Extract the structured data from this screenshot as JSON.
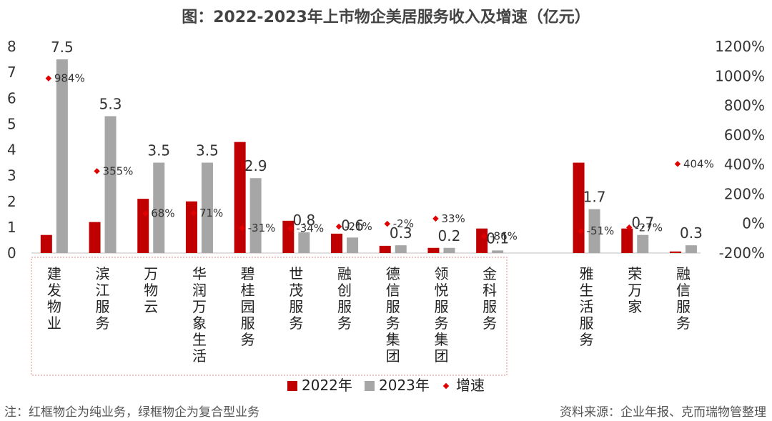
{
  "title": "图：2022-2023年上市物企美居服务收入及增速（亿元）",
  "footer": {
    "note": "注：红框物企为纯业务，绿框物企为复合型业务",
    "source": "资料来源：企业年报、克而瑞物管整理"
  },
  "colors": {
    "series_2022": "#c00000",
    "series_2023": "#a6a6a6",
    "growth": "#e00000",
    "pure_box": "#e6a0a0"
  },
  "chart_data": {
    "type": "bar",
    "title": "图：2022-2023年上市物企美居服务收入及增速（亿元）",
    "categories": [
      "建发物业",
      "滨江服务",
      "万物云",
      "华润万象生活",
      "碧桂园服务",
      "世茂服务",
      "融创服务",
      "德信服务集团",
      "领悦服务集团",
      "金科服务",
      "",
      "雅生活服务",
      "荣万家",
      "融信服务"
    ],
    "series": [
      {
        "name": "2022年",
        "axis": "left",
        "values": [
          0.7,
          1.2,
          2.1,
          2.0,
          4.3,
          1.25,
          0.75,
          0.28,
          0.2,
          0.95,
          null,
          3.5,
          0.95,
          0.06
        ]
      },
      {
        "name": "2023年",
        "axis": "left",
        "values": [
          7.5,
          5.3,
          3.5,
          3.5,
          2.9,
          0.8,
          0.6,
          0.3,
          0.2,
          0.1,
          null,
          1.7,
          0.7,
          0.3
        ],
        "labels": [
          "7.5",
          "5.3",
          "3.5",
          "3.5",
          "2.9",
          "0.8",
          "0.6",
          "0.3",
          "0.2",
          "0.1",
          "",
          "1.7",
          "0.7",
          "0.3"
        ]
      },
      {
        "name": "增速",
        "axis": "right",
        "type": "scatter",
        "values": [
          984,
          355,
          68,
          71,
          -31,
          -34,
          -21,
          -2,
          33,
          -86,
          null,
          -51,
          -27,
          404
        ],
        "labels": [
          "984%",
          "355%",
          "68%",
          "71%",
          "-31%",
          "-34%",
          "-21%",
          "-2%",
          "33%",
          "-86%",
          "",
          "-51%",
          "-27%",
          "404%"
        ]
      }
    ],
    "y_left": {
      "min": 0,
      "max": 8,
      "ticks": [
        "0",
        "1",
        "2",
        "3",
        "4",
        "5",
        "6",
        "7",
        "8"
      ]
    },
    "y_right": {
      "min": -200,
      "max": 1200,
      "ticks": [
        "-200%",
        "0%",
        "200%",
        "400%",
        "600%",
        "800%",
        "1000%",
        "1200%"
      ]
    },
    "legend": {
      "items": [
        "2022年",
        "2023年",
        "增速"
      ],
      "position": "bottom"
    },
    "grid": false
  }
}
